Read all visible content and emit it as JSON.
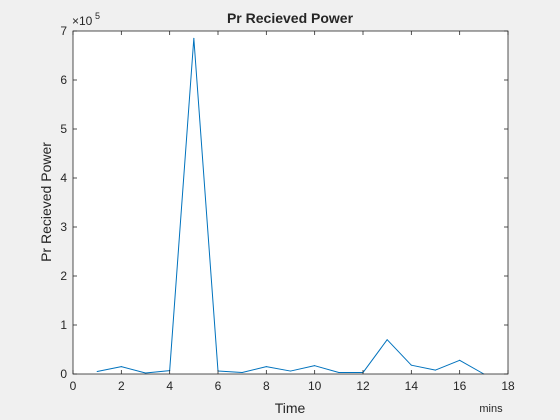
{
  "chart_data": {
    "type": "line",
    "title": "Pr Recieved Power",
    "xlabel": "Time",
    "xunit_label": "mins",
    "ylabel": "Pr Recieved Power",
    "y_exponent_label": "×10",
    "y_exponent_power": "5",
    "xlim": [
      0,
      18
    ],
    "ylim": [
      0,
      7
    ],
    "y_scale_factor": 100000,
    "x_ticks": [
      0,
      2,
      4,
      6,
      8,
      10,
      12,
      14,
      16,
      18
    ],
    "y_ticks": [
      0,
      1,
      2,
      3,
      4,
      5,
      6,
      7
    ],
    "grid": false,
    "series": [
      {
        "color": "#0072bd",
        "x": [
          1,
          2,
          3,
          4,
          5,
          6,
          7,
          8,
          9,
          10,
          11,
          12,
          13,
          14,
          15,
          16,
          17
        ],
        "y": [
          0.05,
          0.15,
          0.02,
          0.07,
          6.85,
          0.06,
          0.03,
          0.15,
          0.06,
          0.17,
          0.03,
          0.03,
          0.7,
          0.18,
          0.08,
          0.28,
          0.0
        ]
      }
    ]
  }
}
